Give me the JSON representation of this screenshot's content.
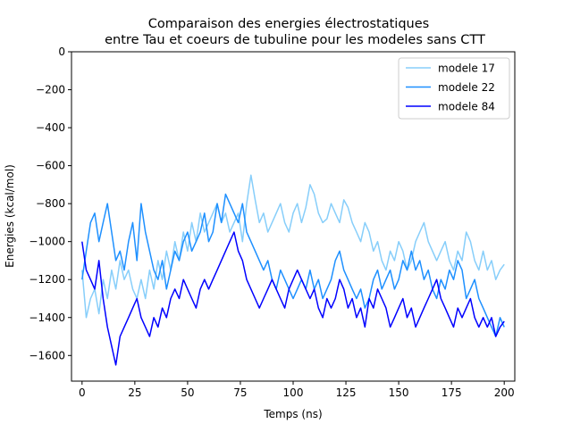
{
  "chart_data": {
    "type": "line",
    "title_line1": "Comparaison des energies électrostatiques",
    "title_line2": "entre Tau et coeurs de tubuline pour les modeles sans CTT",
    "xlabel": "Temps (ns)",
    "ylabel": "Energies (kcal/mol)",
    "xlim": [
      -5,
      205
    ],
    "ylim": [
      -1735,
      0
    ],
    "xticks": [
      0,
      25,
      50,
      75,
      100,
      125,
      150,
      175,
      200
    ],
    "xtick_labels": [
      "0",
      "25",
      "50",
      "75",
      "100",
      "125",
      "150",
      "175",
      "200"
    ],
    "yticks": [
      0,
      -200,
      -400,
      -600,
      -800,
      -1000,
      -1200,
      -1400,
      -1600
    ],
    "ytick_labels": [
      "0",
      "−200",
      "−400",
      "−600",
      "−800",
      "−1000",
      "−1200",
      "−1400",
      "−1600"
    ],
    "grid": false,
    "legend_position": "top-right",
    "series": [
      {
        "name": "modele 17",
        "color": "#87cefa",
        "x": [
          0,
          2,
          4,
          6,
          8,
          10,
          12,
          14,
          16,
          18,
          20,
          22,
          24,
          26,
          28,
          30,
          32,
          34,
          36,
          38,
          40,
          42,
          44,
          46,
          48,
          50,
          52,
          54,
          56,
          58,
          60,
          62,
          64,
          66,
          68,
          70,
          72,
          74,
          76,
          78,
          80,
          82,
          84,
          86,
          88,
          90,
          92,
          94,
          96,
          98,
          100,
          102,
          104,
          106,
          108,
          110,
          112,
          114,
          116,
          118,
          120,
          122,
          124,
          126,
          128,
          130,
          132,
          134,
          136,
          138,
          140,
          142,
          144,
          146,
          148,
          150,
          152,
          154,
          156,
          158,
          160,
          162,
          164,
          166,
          168,
          170,
          172,
          174,
          176,
          178,
          180,
          182,
          184,
          186,
          188,
          190,
          192,
          194,
          196,
          198,
          200
        ],
        "y": [
          -1150,
          -1400,
          -1300,
          -1250,
          -1380,
          -1200,
          -1300,
          -1150,
          -1250,
          -1100,
          -1200,
          -1150,
          -1250,
          -1300,
          -1200,
          -1300,
          -1150,
          -1250,
          -1100,
          -1200,
          -1050,
          -1150,
          -1000,
          -1100,
          -950,
          -1050,
          -900,
          -1000,
          -850,
          -950,
          -900,
          -850,
          -800,
          -900,
          -850,
          -950,
          -900,
          -850,
          -1000,
          -800,
          -650,
          -780,
          -900,
          -850,
          -950,
          -900,
          -850,
          -800,
          -900,
          -950,
          -850,
          -800,
          -900,
          -820,
          -700,
          -750,
          -850,
          -900,
          -880,
          -800,
          -850,
          -900,
          -780,
          -820,
          -900,
          -950,
          -1000,
          -900,
          -950,
          -1050,
          -1000,
          -1100,
          -1150,
          -1050,
          -1100,
          -1000,
          -1050,
          -1150,
          -1100,
          -1000,
          -950,
          -900,
          -1000,
          -1050,
          -1100,
          -1050,
          -1000,
          -1100,
          -1150,
          -1050,
          -1100,
          -950,
          -1000,
          -1100,
          -1150,
          -1050,
          -1150,
          -1100,
          -1200,
          -1150,
          -1120
        ]
      },
      {
        "name": "modele 22",
        "color": "#1e90ff",
        "x": [
          0,
          2,
          4,
          6,
          8,
          10,
          12,
          14,
          16,
          18,
          20,
          22,
          24,
          26,
          28,
          30,
          32,
          34,
          36,
          38,
          40,
          42,
          44,
          46,
          48,
          50,
          52,
          54,
          56,
          58,
          60,
          62,
          64,
          66,
          68,
          70,
          72,
          74,
          76,
          78,
          80,
          82,
          84,
          86,
          88,
          90,
          92,
          94,
          96,
          98,
          100,
          102,
          104,
          106,
          108,
          110,
          112,
          114,
          116,
          118,
          120,
          122,
          124,
          126,
          128,
          130,
          132,
          134,
          136,
          138,
          140,
          142,
          144,
          146,
          148,
          150,
          152,
          154,
          156,
          158,
          160,
          162,
          164,
          166,
          168,
          170,
          172,
          174,
          176,
          178,
          180,
          182,
          184,
          186,
          188,
          190,
          192,
          194,
          196,
          198,
          200
        ],
        "y": [
          -1200,
          -1050,
          -900,
          -850,
          -1000,
          -900,
          -800,
          -950,
          -1100,
          -1050,
          -1150,
          -1000,
          -900,
          -1100,
          -800,
          -950,
          -1050,
          -1150,
          -1200,
          -1100,
          -1250,
          -1150,
          -1050,
          -1100,
          -1000,
          -950,
          -1050,
          -1000,
          -950,
          -850,
          -1000,
          -950,
          -800,
          -900,
          -750,
          -800,
          -850,
          -900,
          -800,
          -950,
          -1000,
          -1050,
          -1100,
          -1150,
          -1100,
          -1200,
          -1250,
          -1150,
          -1200,
          -1250,
          -1300,
          -1250,
          -1200,
          -1250,
          -1150,
          -1250,
          -1200,
          -1300,
          -1250,
          -1200,
          -1100,
          -1050,
          -1150,
          -1200,
          -1250,
          -1300,
          -1250,
          -1350,
          -1300,
          -1200,
          -1150,
          -1250,
          -1200,
          -1150,
          -1250,
          -1200,
          -1100,
          -1150,
          -1050,
          -1150,
          -1100,
          -1200,
          -1150,
          -1250,
          -1300,
          -1200,
          -1250,
          -1150,
          -1200,
          -1100,
          -1150,
          -1300,
          -1250,
          -1200,
          -1300,
          -1350,
          -1400,
          -1450,
          -1500,
          -1400,
          -1450
        ]
      },
      {
        "name": "modele 84",
        "color": "#0000ff",
        "x": [
          0,
          2,
          4,
          6,
          8,
          10,
          12,
          14,
          16,
          18,
          20,
          22,
          24,
          26,
          28,
          30,
          32,
          34,
          36,
          38,
          40,
          42,
          44,
          46,
          48,
          50,
          52,
          54,
          56,
          58,
          60,
          62,
          64,
          66,
          68,
          70,
          72,
          74,
          76,
          78,
          80,
          82,
          84,
          86,
          88,
          90,
          92,
          94,
          96,
          98,
          100,
          102,
          104,
          106,
          108,
          110,
          112,
          114,
          116,
          118,
          120,
          122,
          124,
          126,
          128,
          130,
          132,
          134,
          136,
          138,
          140,
          142,
          144,
          146,
          148,
          150,
          152,
          154,
          156,
          158,
          160,
          162,
          164,
          166,
          168,
          170,
          172,
          174,
          176,
          178,
          180,
          182,
          184,
          186,
          188,
          190,
          192,
          194,
          196,
          198,
          200
        ],
        "y": [
          -1000,
          -1150,
          -1200,
          -1250,
          -1100,
          -1300,
          -1450,
          -1550,
          -1650,
          -1500,
          -1450,
          -1400,
          -1350,
          -1300,
          -1400,
          -1450,
          -1500,
          -1400,
          -1450,
          -1350,
          -1400,
          -1300,
          -1250,
          -1300,
          -1200,
          -1250,
          -1300,
          -1350,
          -1250,
          -1200,
          -1250,
          -1200,
          -1150,
          -1100,
          -1050,
          -1000,
          -950,
          -1050,
          -1100,
          -1200,
          -1250,
          -1300,
          -1350,
          -1300,
          -1250,
          -1200,
          -1250,
          -1300,
          -1350,
          -1250,
          -1200,
          -1150,
          -1200,
          -1250,
          -1300,
          -1250,
          -1350,
          -1400,
          -1300,
          -1350,
          -1300,
          -1200,
          -1250,
          -1350,
          -1300,
          -1400,
          -1350,
          -1450,
          -1300,
          -1350,
          -1250,
          -1300,
          -1350,
          -1450,
          -1400,
          -1350,
          -1300,
          -1400,
          -1350,
          -1450,
          -1400,
          -1350,
          -1300,
          -1250,
          -1200,
          -1300,
          -1350,
          -1400,
          -1450,
          -1350,
          -1400,
          -1350,
          -1300,
          -1400,
          -1450,
          -1400,
          -1450,
          -1400,
          -1500,
          -1450,
          -1420
        ]
      }
    ]
  }
}
